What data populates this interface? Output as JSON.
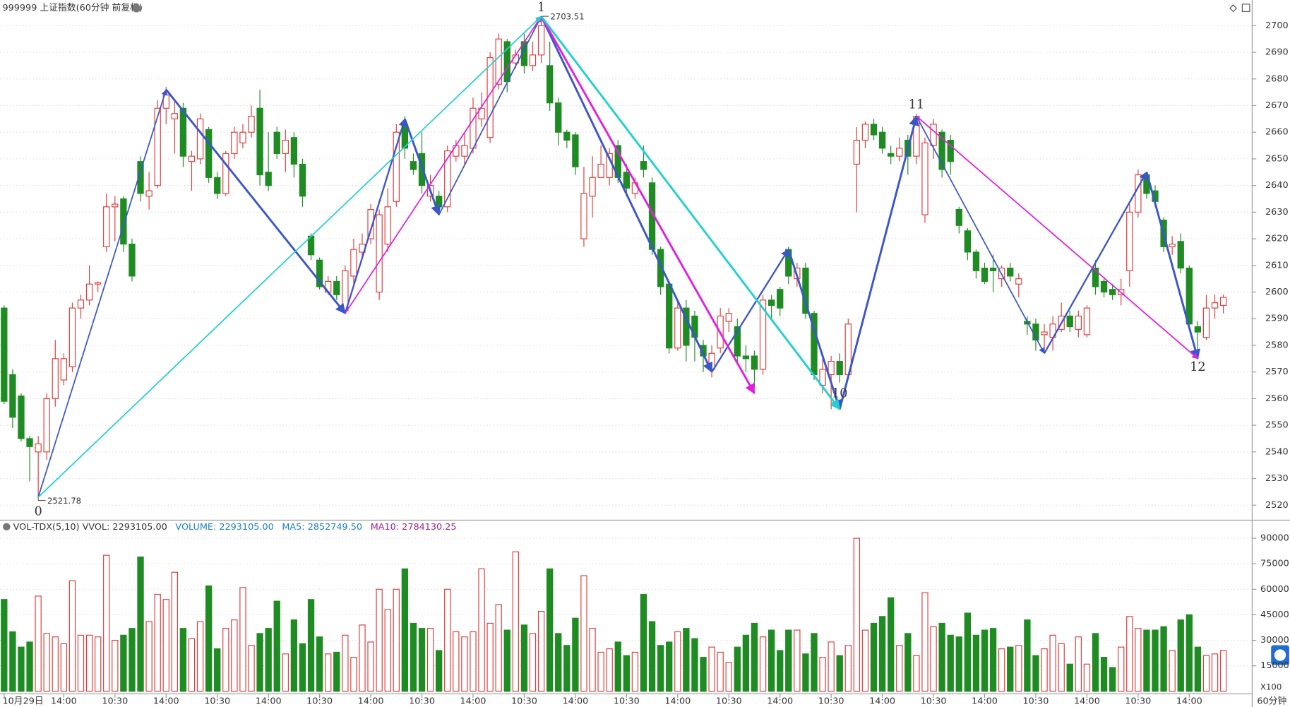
{
  "chart_data": {
    "type": "candlestick",
    "title": "999999 上证指数(60分钟 前复权)",
    "period_label": "60分钟",
    "up_color": "#e23b3b",
    "down_color": "#1f8c23",
    "ylim": [
      2515,
      2709
    ],
    "yticks": [
      2520,
      2530,
      2540,
      2550,
      2560,
      2570,
      2580,
      2590,
      2600,
      2610,
      2620,
      2630,
      2640,
      2650,
      2660,
      2670,
      2680,
      2690,
      2700
    ],
    "grid": true,
    "xticks": [
      {
        "value": 0,
        "label": "10月29日"
      },
      {
        "value": 7,
        "label": "14:00"
      },
      {
        "value": 13,
        "label": "10:30"
      },
      {
        "value": 19,
        "label": "14:00"
      },
      {
        "value": 25,
        "label": "10:30"
      },
      {
        "value": 31,
        "label": "14:00"
      },
      {
        "value": 37,
        "label": "10:30"
      },
      {
        "value": 43,
        "label": "14:00"
      },
      {
        "value": 49,
        "label": "10:30"
      },
      {
        "value": 55,
        "label": "14:00"
      },
      {
        "value": 61,
        "label": "10:30"
      },
      {
        "value": 67,
        "label": "14:00"
      },
      {
        "value": 73,
        "label": "10:30"
      },
      {
        "value": 79,
        "label": "14:00"
      },
      {
        "value": 85,
        "label": "10:30"
      },
      {
        "value": 91,
        "label": "14:00"
      },
      {
        "value": 97,
        "label": "10:30"
      },
      {
        "value": 103,
        "label": "14:00"
      },
      {
        "value": 109,
        "label": "10:30"
      },
      {
        "value": 115,
        "label": "14:00"
      },
      {
        "value": 121,
        "label": "10:30"
      },
      {
        "value": 127,
        "label": "14:00"
      },
      {
        "value": 133,
        "label": "10:30"
      },
      {
        "value": 139,
        "label": "14:00"
      }
    ],
    "ohlc": [
      [
        2594,
        2595,
        2558,
        2559
      ],
      [
        2569,
        2571,
        2549,
        2553
      ],
      [
        2561,
        2562,
        2544,
        2545
      ],
      [
        2545,
        2546,
        2529,
        2542
      ],
      [
        2540,
        2546,
        2521.78,
        2543
      ],
      [
        2540,
        2562,
        2537,
        2560
      ],
      [
        2560,
        2582,
        2557,
        2575
      ],
      [
        2567,
        2577,
        2565,
        2575
      ],
      [
        2572,
        2596,
        2570,
        2594
      ],
      [
        2594,
        2599,
        2590,
        2597
      ],
      [
        2597,
        2610,
        2595,
        2603
      ],
      [
        2603,
        2604,
        2600,
        2603.5
      ],
      [
        2617,
        2637,
        2615,
        2632
      ],
      [
        2632,
        2636,
        2619,
        2633
      ],
      [
        2635,
        2636,
        2615,
        2618
      ],
      [
        2618,
        2620,
        2604,
        2606
      ],
      [
        2649,
        2651,
        2634,
        2637
      ],
      [
        2636,
        2645,
        2631,
        2638
      ],
      [
        2640,
        2672,
        2639,
        2669
      ],
      [
        2669,
        2677,
        2663,
        2674
      ],
      [
        2665,
        2672,
        2652,
        2667
      ],
      [
        2669,
        2671,
        2647,
        2651
      ],
      [
        2649,
        2653,
        2638,
        2651
      ],
      [
        2650,
        2667,
        2648,
        2665
      ],
      [
        2661,
        2662,
        2641,
        2643
      ],
      [
        2643,
        2645,
        2635,
        2637
      ],
      [
        2637,
        2653,
        2636,
        2652
      ],
      [
        2652,
        2662,
        2650,
        2660
      ],
      [
        2656,
        2663,
        2654,
        2660
      ],
      [
        2660,
        2670,
        2658,
        2666
      ],
      [
        2669,
        2676,
        2640,
        2644
      ],
      [
        2645,
        2660,
        2638,
        2640
      ],
      [
        2660,
        2662,
        2650,
        2652
      ],
      [
        2652,
        2661,
        2645,
        2657
      ],
      [
        2658,
        2660,
        2643,
        2648
      ],
      [
        2648,
        2650,
        2632,
        2636
      ],
      [
        2621,
        2622,
        2612,
        2614
      ],
      [
        2612,
        2613,
        2601,
        2602
      ],
      [
        2600,
        2606,
        2599,
        2604
      ],
      [
        2604,
        2606,
        2597,
        2599
      ],
      [
        2593,
        2610,
        2592,
        2608
      ],
      [
        2606,
        2620,
        2603,
        2616
      ],
      [
        2615,
        2622,
        2613,
        2618
      ],
      [
        2620,
        2633,
        2618,
        2631
      ],
      [
        2600,
        2631,
        2597,
        2629
      ],
      [
        2618,
        2639,
        2615,
        2632
      ],
      [
        2634,
        2663,
        2632,
        2660
      ],
      [
        2663,
        2666,
        2650,
        2654
      ],
      [
        2649,
        2652,
        2644,
        2646
      ],
      [
        2652,
        2660,
        2637,
        2640
      ],
      [
        2636,
        2644,
        2634,
        2640
      ],
      [
        2636,
        2638,
        2629,
        2632
      ],
      [
        2632,
        2655,
        2630,
        2653
      ],
      [
        2651,
        2657,
        2649,
        2655
      ],
      [
        2651,
        2660,
        2648,
        2655
      ],
      [
        2654,
        2673,
        2652,
        2669
      ],
      [
        2665,
        2675,
        2662,
        2669
      ],
      [
        2658,
        2690,
        2656,
        2688
      ],
      [
        2678,
        2697,
        2676,
        2695
      ],
      [
        2694,
        2695,
        2675,
        2679
      ],
      [
        2686,
        2691,
        2684,
        2689
      ],
      [
        2694,
        2697,
        2682,
        2685
      ],
      [
        2685,
        2694,
        2683,
        2689
      ],
      [
        2689,
        2703.51,
        2686,
        2700
      ],
      [
        2685,
        2694,
        2668,
        2671
      ],
      [
        2671,
        2673,
        2655,
        2660
      ],
      [
        2660,
        2661,
        2654,
        2657
      ],
      [
        2659,
        2660,
        2644,
        2647
      ],
      [
        2620,
        2647,
        2617,
        2637
      ],
      [
        2636,
        2651,
        2628,
        2643
      ],
      [
        2643,
        2655,
        2643,
        2648
      ],
      [
        2643,
        2654,
        2640,
        2652
      ],
      [
        2655,
        2657,
        2641,
        2643
      ],
      [
        2645,
        2648,
        2636,
        2639
      ],
      [
        2637,
        2643,
        2635,
        2641
      ],
      [
        2649,
        2655,
        2643,
        2646
      ],
      [
        2641,
        2643,
        2614,
        2616
      ],
      [
        2616,
        2617,
        2599,
        2602
      ],
      [
        2603,
        2604,
        2577,
        2579
      ],
      [
        2579,
        2597,
        2578,
        2594
      ],
      [
        2594,
        2597,
        2574,
        2580
      ],
      [
        2591,
        2593,
        2574,
        2583
      ],
      [
        2580,
        2582,
        2570,
        2576
      ],
      [
        2571,
        2580,
        2568,
        2577
      ],
      [
        2579,
        2594,
        2577,
        2591
      ],
      [
        2589,
        2594,
        2585,
        2592
      ],
      [
        2587,
        2590,
        2573,
        2576
      ],
      [
        2576,
        2580,
        2570,
        2575
      ],
      [
        2576,
        2578,
        2564,
        2571
      ],
      [
        2571,
        2599,
        2569,
        2597
      ],
      [
        2597,
        2599,
        2590,
        2595
      ],
      [
        2601,
        2602,
        2591,
        2594
      ],
      [
        2616,
        2617,
        2603,
        2606
      ],
      [
        2605,
        2611,
        2602,
        2609
      ],
      [
        2609,
        2611,
        2590,
        2592
      ],
      [
        2592,
        2593,
        2567,
        2569
      ],
      [
        2565,
        2575,
        2562,
        2571
      ],
      [
        2569,
        2576,
        2556,
        2574
      ],
      [
        2574,
        2577,
        2566,
        2569
      ],
      [
        2569,
        2590,
        2568,
        2588
      ],
      [
        2648,
        2662,
        2630,
        2657
      ],
      [
        2657,
        2664,
        2654,
        2663
      ],
      [
        2663,
        2665,
        2657,
        2659
      ],
      [
        2660,
        2662,
        2652,
        2654
      ],
      [
        2652,
        2655,
        2648,
        2651
      ],
      [
        2651,
        2658,
        2649,
        2654
      ],
      [
        2657,
        2659,
        2644,
        2651
      ],
      [
        2651,
        2667,
        2648,
        2666
      ],
      [
        2629,
        2658,
        2626,
        2656
      ],
      [
        2655,
        2665,
        2650,
        2663
      ],
      [
        2660,
        2661,
        2643,
        2646
      ],
      [
        2657,
        2659,
        2644,
        2649
      ],
      [
        2631,
        2632,
        2622,
        2625
      ],
      [
        2623,
        2624,
        2612,
        2615
      ],
      [
        2615,
        2616,
        2605,
        2608
      ],
      [
        2609,
        2611,
        2603,
        2604
      ],
      [
        2609,
        2614,
        2600,
        2608
      ],
      [
        2605,
        2610,
        2602,
        2609
      ],
      [
        2609,
        2611,
        2604,
        2606
      ],
      [
        2603,
        2607,
        2598,
        2605
      ],
      [
        2589,
        2591,
        2584,
        2588
      ],
      [
        2588,
        2590,
        2578,
        2582
      ],
      [
        2584,
        2588,
        2577,
        2585
      ],
      [
        2583,
        2591,
        2578,
        2588
      ],
      [
        2586,
        2596,
        2585,
        2591
      ],
      [
        2591,
        2593,
        2585,
        2587
      ],
      [
        2586,
        2593,
        2583,
        2591
      ],
      [
        2584,
        2595,
        2583,
        2594
      ],
      [
        2609,
        2612,
        2599,
        2602
      ],
      [
        2604,
        2605,
        2598,
        2600
      ],
      [
        2601,
        2603,
        2597,
        2599
      ],
      [
        2599,
        2605,
        2595,
        2601
      ],
      [
        2608,
        2633,
        2602,
        2630
      ],
      [
        2630,
        2646,
        2628,
        2644
      ],
      [
        2644,
        2645,
        2635,
        2637
      ],
      [
        2638,
        2640,
        2632,
        2634
      ],
      [
        2627,
        2628,
        2615,
        2617
      ],
      [
        2617,
        2621,
        2614,
        2618
      ],
      [
        2619,
        2622,
        2607,
        2609
      ],
      [
        2609,
        2610,
        2586,
        2588
      ],
      [
        2587,
        2589,
        2576,
        2585
      ],
      [
        2583,
        2599,
        2582,
        2594
      ],
      [
        2594,
        2599,
        2590,
        2596
      ],
      [
        2595,
        2599,
        2592,
        2598
      ]
    ],
    "extremes": [
      {
        "bar": 4,
        "value": 2521.78
      },
      {
        "bar": 63,
        "value": 2703.51
      }
    ],
    "wave_labels": [
      {
        "text": "0",
        "bar": 4,
        "position": "below"
      },
      {
        "text": "1",
        "bar": 63,
        "position": "above"
      },
      {
        "text": "10",
        "bar": 98,
        "position": "below"
      },
      {
        "text": "11",
        "bar": 107,
        "position": "above"
      },
      {
        "text": "12",
        "bar": 140,
        "position": "below"
      }
    ],
    "trend_lines": [
      {
        "from": [
          4,
          2523
        ],
        "to": [
          19,
          2676
        ],
        "color": "#3b56c9",
        "width": 1.5
      },
      {
        "from": [
          19,
          2676
        ],
        "to": [
          40,
          2592
        ],
        "color": "#3b56c9",
        "width": 2.5
      },
      {
        "from": [
          40,
          2592
        ],
        "to": [
          47,
          2665
        ],
        "color": "#3b56c9",
        "width": 2
      },
      {
        "from": [
          47,
          2665
        ],
        "to": [
          51,
          2629
        ],
        "color": "#3b56c9",
        "width": 2.5
      },
      {
        "from": [
          51,
          2629
        ],
        "to": [
          63,
          2703.5
        ],
        "color": "#3b56c9",
        "width": 1.5
      },
      {
        "from": [
          63,
          2703.5
        ],
        "to": [
          83,
          2570
        ],
        "color": "#3b56c9",
        "width": 2.5
      },
      {
        "from": [
          83,
          2570
        ],
        "to": [
          92,
          2616
        ],
        "color": "#3b56c9",
        "width": 2
      },
      {
        "from": [
          92,
          2616
        ],
        "to": [
          98,
          2556
        ],
        "color": "#3b56c9",
        "width": 2.5
      },
      {
        "from": [
          98,
          2556
        ],
        "to": [
          107,
          2666
        ],
        "color": "#3b56c9",
        "width": 2.5
      },
      {
        "from": [
          107,
          2666
        ],
        "to": [
          122,
          2577
        ],
        "color": "#3b56c9",
        "width": 1.5
      },
      {
        "from": [
          122,
          2577
        ],
        "to": [
          134,
          2645
        ],
        "color": "#3b56c9",
        "width": 2
      },
      {
        "from": [
          134,
          2645
        ],
        "to": [
          140,
          2575
        ],
        "color": "#3b56c9",
        "width": 2.5
      },
      {
        "from": [
          40,
          2592
        ],
        "to": [
          63,
          2703.5
        ],
        "color": "#e020e0",
        "width": 1.5
      },
      {
        "from": [
          63,
          2703.5
        ],
        "to": [
          88,
          2562
        ],
        "color": "#e020e0",
        "width": 2.5
      },
      {
        "from": [
          107,
          2666
        ],
        "to": [
          140,
          2575
        ],
        "color": "#e020e0",
        "width": 1.5
      },
      {
        "from": [
          4,
          2523
        ],
        "to": [
          63,
          2703.5
        ],
        "color": "#22d0d0",
        "width": 1.5
      },
      {
        "from": [
          63,
          2703.5
        ],
        "to": [
          98,
          2556
        ],
        "color": "#22d0d0",
        "width": 2.5
      }
    ],
    "volume": {
      "header": "VOL-TDX(5,10) VVOL: 2293105.00",
      "legend": [
        {
          "text": "VOLUME: 2293105.00",
          "color": "#1a7fc8"
        },
        {
          "text": "MA5: 2852749.50",
          "color": "#1a7fc8"
        },
        {
          "text": "MA10: 2784130.25",
          "color": "#a0208c"
        }
      ],
      "unit_label": "X100",
      "ylim": [
        0,
        100000
      ],
      "yticks": [
        15000,
        30000,
        45000,
        60000,
        75000,
        90000
      ],
      "values": [
        54000,
        35000,
        26000,
        29000,
        56000,
        34000,
        32000,
        28000,
        65000,
        33000,
        33000,
        32000,
        80000,
        30000,
        33000,
        37000,
        79000,
        41000,
        57000,
        54000,
        70000,
        37000,
        31000,
        41000,
        62000,
        25000,
        37000,
        42000,
        61000,
        27000,
        34000,
        37000,
        53000,
        22000,
        42000,
        28000,
        54000,
        32000,
        22000,
        23000,
        33000,
        20000,
        39000,
        29000,
        60000,
        48000,
        60000,
        72000,
        40000,
        37000,
        37000,
        24000,
        60000,
        35000,
        32000,
        35000,
        72000,
        40000,
        51000,
        36000,
        82000,
        39000,
        34000,
        47000,
        72000,
        34000,
        27000,
        43000,
        68000,
        37000,
        23000,
        25000,
        29000,
        21000,
        23000,
        57000,
        41000,
        27000,
        29000,
        35000,
        37000,
        31000,
        20000,
        26000,
        23000,
        17000,
        26000,
        33000,
        40000,
        32000,
        36000,
        24000,
        36000,
        36000,
        22000,
        34000,
        20000,
        29000,
        21000,
        27000,
        90000,
        36000,
        40000,
        44000,
        55000,
        27000,
        34000,
        21000,
        58000,
        38000,
        40000,
        33000,
        32000,
        46000,
        33000,
        36000,
        37000,
        25000,
        26000,
        27000,
        42000,
        21000,
        25000,
        33000,
        28000,
        16000,
        32000,
        16000,
        34000,
        20000,
        14000,
        26000,
        44000,
        37000,
        36000,
        36000,
        38000,
        24000,
        42000,
        45000,
        26000,
        21000,
        22000,
        24000
      ]
    }
  }
}
